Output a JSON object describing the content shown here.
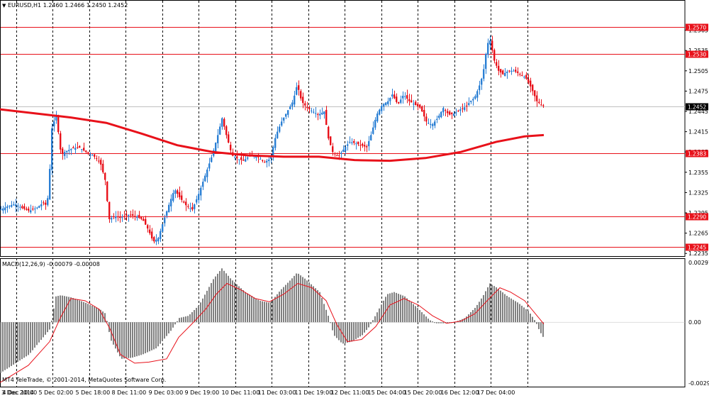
{
  "header": {
    "menu_icon": "triangle-down-icon",
    "symbol_info": "EURUSD,H1  1.2460 1.2466 1.2450 1.2452"
  },
  "colors": {
    "bull": "#2a7fd4",
    "bear": "#e8111a",
    "level": "#e8111a",
    "ma": "#e8111a",
    "macd_bar": "#808080",
    "macd_signal": "#e8111a",
    "grid": "#000000",
    "current_tag": "#000000"
  },
  "chart_data": [
    {
      "type": "candlestick",
      "title": "EURUSD,H1",
      "ohlc_label": "1.2460 1.2466 1.2450 1.2452",
      "ylim": [
        1.223,
        1.2595
      ],
      "y_ticks": [
        "1.2565",
        "1.2535",
        "1.2505",
        "1.2475",
        "1.2445",
        "1.2415",
        "1.2385",
        "1.2355",
        "1.2325",
        "1.2295",
        "1.2265",
        "1.2235"
      ],
      "x_ticks": [
        "3 Dec 2014",
        "4 Dec 10:00",
        "5 Dec 02:00",
        "5 Dec 18:00",
        "8 Dec 11:00",
        "9 Dec 03:00",
        "9 Dec 19:00",
        "10 Dec 11:00",
        "11 Dec 03:00",
        "11 Dec 19:00",
        "12 Dec 11:00",
        "15 Dec 04:00",
        "15 Dec 20:00",
        "16 Dec 12:00",
        "17 Dec 04:00"
      ],
      "levels": [
        "1.2570",
        "1.2530",
        "1.2383",
        "1.2290",
        "1.2245"
      ],
      "current_price": "1.2452",
      "close_path": [
        [
          0,
          1.23
        ],
        [
          10,
          1.2305
        ],
        [
          20,
          1.2308
        ],
        [
          30,
          1.2302
        ],
        [
          40,
          1.2298
        ],
        [
          50,
          1.2302
        ],
        [
          60,
          1.231
        ],
        [
          65,
          1.2305
        ],
        [
          68,
          1.234
        ],
        [
          72,
          1.242
        ],
        [
          78,
          1.244
        ],
        [
          85,
          1.238
        ],
        [
          90,
          1.2385
        ],
        [
          100,
          1.239
        ],
        [
          110,
          1.2392
        ],
        [
          120,
          1.2385
        ],
        [
          130,
          1.238
        ],
        [
          140,
          1.237
        ],
        [
          148,
          1.234
        ],
        [
          152,
          1.2285
        ],
        [
          160,
          1.229
        ],
        [
          170,
          1.2288
        ],
        [
          180,
          1.2292
        ],
        [
          190,
          1.229
        ],
        [
          200,
          1.2285
        ],
        [
          208,
          1.227
        ],
        [
          215,
          1.2252
        ],
        [
          222,
          1.2258
        ],
        [
          230,
          1.2285
        ],
        [
          238,
          1.231
        ],
        [
          245,
          1.233
        ],
        [
          252,
          1.2318
        ],
        [
          262,
          1.2305
        ],
        [
          270,
          1.23
        ],
        [
          278,
          1.232
        ],
        [
          288,
          1.235
        ],
        [
          298,
          1.238
        ],
        [
          306,
          1.241
        ],
        [
          312,
          1.2435
        ],
        [
          318,
          1.241
        ],
        [
          326,
          1.238
        ],
        [
          334,
          1.2375
        ],
        [
          342,
          1.2372
        ],
        [
          352,
          1.238
        ],
        [
          362,
          1.2378
        ],
        [
          372,
          1.237
        ],
        [
          380,
          1.2375
        ],
        [
          388,
          1.241
        ],
        [
          396,
          1.243
        ],
        [
          404,
          1.2445
        ],
        [
          412,
          1.246
        ],
        [
          418,
          1.2485
        ],
        [
          424,
          1.246
        ],
        [
          432,
          1.245
        ],
        [
          440,
          1.2445
        ],
        [
          448,
          1.244
        ],
        [
          456,
          1.2445
        ],
        [
          462,
          1.2405
        ],
        [
          468,
          1.2385
        ],
        [
          476,
          1.2378
        ],
        [
          484,
          1.239
        ],
        [
          492,
          1.24
        ],
        [
          500,
          1.2398
        ],
        [
          508,
          1.2395
        ],
        [
          516,
          1.2392
        ],
        [
          522,
          1.241
        ],
        [
          530,
          1.244
        ],
        [
          538,
          1.2455
        ],
        [
          546,
          1.246
        ],
        [
          552,
          1.247
        ],
        [
          560,
          1.2455
        ],
        [
          568,
          1.247
        ],
        [
          576,
          1.246
        ],
        [
          584,
          1.2455
        ],
        [
          592,
          1.245
        ],
        [
          600,
          1.243
        ],
        [
          608,
          1.2425
        ],
        [
          616,
          1.2435
        ],
        [
          624,
          1.245
        ],
        [
          632,
          1.244
        ],
        [
          640,
          1.2442
        ],
        [
          648,
          1.2448
        ],
        [
          656,
          1.2452
        ],
        [
          662,
          1.246
        ],
        [
          668,
          1.2465
        ],
        [
          674,
          1.248
        ],
        [
          680,
          1.25
        ],
        [
          686,
          1.2545
        ],
        [
          690,
          1.255
        ],
        [
          696,
          1.252
        ],
        [
          702,
          1.2505
        ],
        [
          708,
          1.25
        ],
        [
          716,
          1.2505
        ],
        [
          724,
          1.2505
        ],
        [
          732,
          1.25
        ],
        [
          740,
          1.2495
        ],
        [
          748,
          1.248
        ],
        [
          756,
          1.246
        ],
        [
          762,
          1.2455
        ],
        [
          767,
          1.2452
        ]
      ],
      "moving_average": [
        [
          0,
          1.2448
        ],
        [
          50,
          1.2442
        ],
        [
          100,
          1.2436
        ],
        [
          150,
          1.2428
        ],
        [
          200,
          1.2412
        ],
        [
          250,
          1.2395
        ],
        [
          300,
          1.2385
        ],
        [
          350,
          1.238
        ],
        [
          400,
          1.2378
        ],
        [
          450,
          1.2378
        ],
        [
          500,
          1.2373
        ],
        [
          550,
          1.2372
        ],
        [
          600,
          1.2376
        ],
        [
          650,
          1.2385
        ],
        [
          700,
          1.24
        ],
        [
          740,
          1.2408
        ],
        [
          767,
          1.241
        ]
      ]
    },
    {
      "type": "bar",
      "title": "MACD(12,26,9) -0.00079 -0.00008",
      "ylim": [
        -0.00299,
        0.00297
      ],
      "y_ticks": [
        "0.00297",
        "0.00",
        "-0.00299"
      ],
      "histogram": [
        [
          0,
          -0.00235
        ],
        [
          40,
          -0.0015
        ],
        [
          70,
          -0.0003
        ],
        [
          78,
          0.0012
        ],
        [
          85,
          0.00125
        ],
        [
          100,
          0.00115
        ],
        [
          120,
          0.0009
        ],
        [
          140,
          0.0006
        ],
        [
          148,
          0.0004
        ],
        [
          155,
          -0.0008
        ],
        [
          170,
          -0.0017
        ],
        [
          185,
          -0.00165
        ],
        [
          200,
          -0.0015
        ],
        [
          220,
          -0.0012
        ],
        [
          240,
          -0.0004
        ],
        [
          252,
          0.0002
        ],
        [
          265,
          0.0003
        ],
        [
          280,
          0.0008
        ],
        [
          300,
          0.002
        ],
        [
          312,
          0.0025
        ],
        [
          325,
          0.002
        ],
        [
          345,
          0.0014
        ],
        [
          365,
          0.001
        ],
        [
          380,
          0.0009
        ],
        [
          395,
          0.0015
        ],
        [
          410,
          0.002
        ],
        [
          418,
          0.0023
        ],
        [
          430,
          0.002
        ],
        [
          450,
          0.0014
        ],
        [
          462,
          0.0003
        ],
        [
          470,
          -0.0006
        ],
        [
          482,
          -0.001
        ],
        [
          495,
          -0.0009
        ],
        [
          510,
          -0.0006
        ],
        [
          520,
          -0.0002
        ],
        [
          530,
          0.0004
        ],
        [
          545,
          0.0013
        ],
        [
          555,
          0.0014
        ],
        [
          570,
          0.0012
        ],
        [
          590,
          0.0006
        ],
        [
          605,
          0.0001
        ],
        [
          615,
          -5e-05
        ],
        [
          625,
          -5e-05
        ],
        [
          640,
          0.0
        ],
        [
          655,
          0.0002
        ],
        [
          670,
          0.0007
        ],
        [
          680,
          0.0012
        ],
        [
          690,
          0.0018
        ],
        [
          700,
          0.0016
        ],
        [
          715,
          0.0012
        ],
        [
          730,
          0.0009
        ],
        [
          745,
          0.0005
        ],
        [
          755,
          0.0
        ],
        [
          760,
          -0.0004
        ],
        [
          767,
          -0.00079
        ]
      ],
      "signal": [
        [
          0,
          -0.0028
        ],
        [
          40,
          -0.002
        ],
        [
          70,
          -0.0009
        ],
        [
          85,
          0.0002
        ],
        [
          100,
          0.0011
        ],
        [
          120,
          0.001
        ],
        [
          140,
          0.0006
        ],
        [
          155,
          -0.0003
        ],
        [
          170,
          -0.0015
        ],
        [
          190,
          -0.0019
        ],
        [
          210,
          -0.00185
        ],
        [
          235,
          -0.0017
        ],
        [
          252,
          -0.0007
        ],
        [
          270,
          -0.0001
        ],
        [
          290,
          0.0006
        ],
        [
          305,
          0.0013
        ],
        [
          320,
          0.0018
        ],
        [
          340,
          0.0015
        ],
        [
          360,
          0.0011
        ],
        [
          380,
          0.00095
        ],
        [
          400,
          0.0013
        ],
        [
          420,
          0.0018
        ],
        [
          440,
          0.0016
        ],
        [
          460,
          0.001
        ],
        [
          475,
          -0.0001
        ],
        [
          490,
          -0.0009
        ],
        [
          510,
          -0.0008
        ],
        [
          530,
          -0.0002
        ],
        [
          550,
          0.0008
        ],
        [
          570,
          0.0011
        ],
        [
          590,
          0.0008
        ],
        [
          610,
          0.0003
        ],
        [
          630,
          -5e-05
        ],
        [
          650,
          5e-05
        ],
        [
          670,
          0.0004
        ],
        [
          690,
          0.0011
        ],
        [
          705,
          0.0016
        ],
        [
          720,
          0.0014
        ],
        [
          740,
          0.001
        ],
        [
          755,
          0.0004
        ],
        [
          767,
          -8e-05
        ]
      ]
    }
  ],
  "footer": {
    "copyright": "MT4 TeleTrade, © 2001-2014, MetaQuotes Software Corp."
  }
}
